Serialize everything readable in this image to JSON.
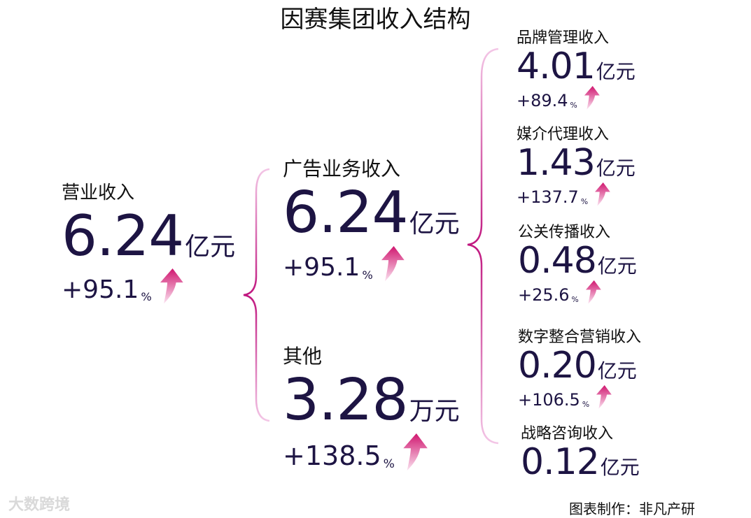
{
  "title": "因赛集团收入结构",
  "nodes": [
    {
      "label": "营业收入",
      "value": "6.24",
      "unit": "亿元",
      "growth": "+95.1",
      "growth_unit": "%"
    },
    {
      "label": "广告业务收入",
      "value": "6.24",
      "unit": "亿元",
      "growth": "+95.1",
      "growth_unit": "%"
    },
    {
      "label": "其他",
      "value": "3.28",
      "unit": "万元",
      "growth": "+138.5",
      "growth_unit": "%"
    },
    {
      "label": "品牌管理收入",
      "value": "4.01",
      "unit": "亿元",
      "growth": "+89.4",
      "growth_unit": "%"
    },
    {
      "label": "媒介代理收入",
      "value": "1.43",
      "unit": "亿元",
      "growth": "+137.7",
      "growth_unit": "%"
    },
    {
      "label": "公关传播收入",
      "value": "0.48",
      "unit": "亿元",
      "growth": "+25.6",
      "growth_unit": "%"
    },
    {
      "label": "数字整合营销收入",
      "value": "0.20",
      "unit": "亿元",
      "growth": "+106.5",
      "growth_unit": "%"
    },
    {
      "label": "战略咨询收入",
      "value": "0.12",
      "unit": "亿元"
    }
  ],
  "footer": "图表制作：非凡产研",
  "watermark": "大数跨境"
}
